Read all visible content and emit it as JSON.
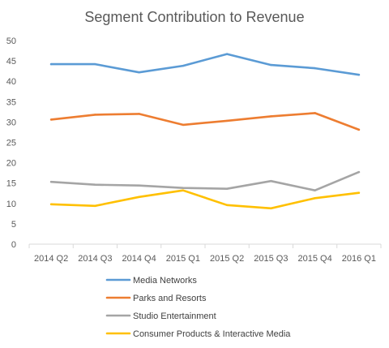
{
  "chart_data": {
    "type": "line",
    "title": "Segment Contribution to Revenue",
    "categories": [
      "2014 Q2",
      "2014 Q3",
      "2014 Q4",
      "2015 Q1",
      "2015 Q2",
      "2015 Q3",
      "2015 Q4",
      "2016 Q1"
    ],
    "ylim": [
      0,
      50
    ],
    "yticks": [
      0,
      5,
      10,
      15,
      20,
      25,
      30,
      35,
      40,
      45,
      50
    ],
    "grid": false,
    "legend_position": "bottom",
    "series": [
      {
        "name": "Media Networks",
        "color": "#5b9bd5",
        "values": [
          44.2,
          44.2,
          42.2,
          43.8,
          46.7,
          44.0,
          43.2,
          41.6
        ]
      },
      {
        "name": "Parks and Resorts",
        "color": "#ed7d31",
        "values": [
          30.6,
          31.8,
          32.0,
          29.3,
          30.3,
          31.4,
          32.2,
          28.1
        ]
      },
      {
        "name": "Studio Entertainment",
        "color": "#a5a5a5",
        "values": [
          15.3,
          14.6,
          14.4,
          13.8,
          13.6,
          15.5,
          13.2,
          17.7
        ]
      },
      {
        "name": "Consumer Products & Interactive Media",
        "color": "#ffc000",
        "values": [
          9.8,
          9.4,
          11.6,
          13.2,
          9.6,
          8.8,
          11.3,
          12.6
        ]
      }
    ]
  }
}
